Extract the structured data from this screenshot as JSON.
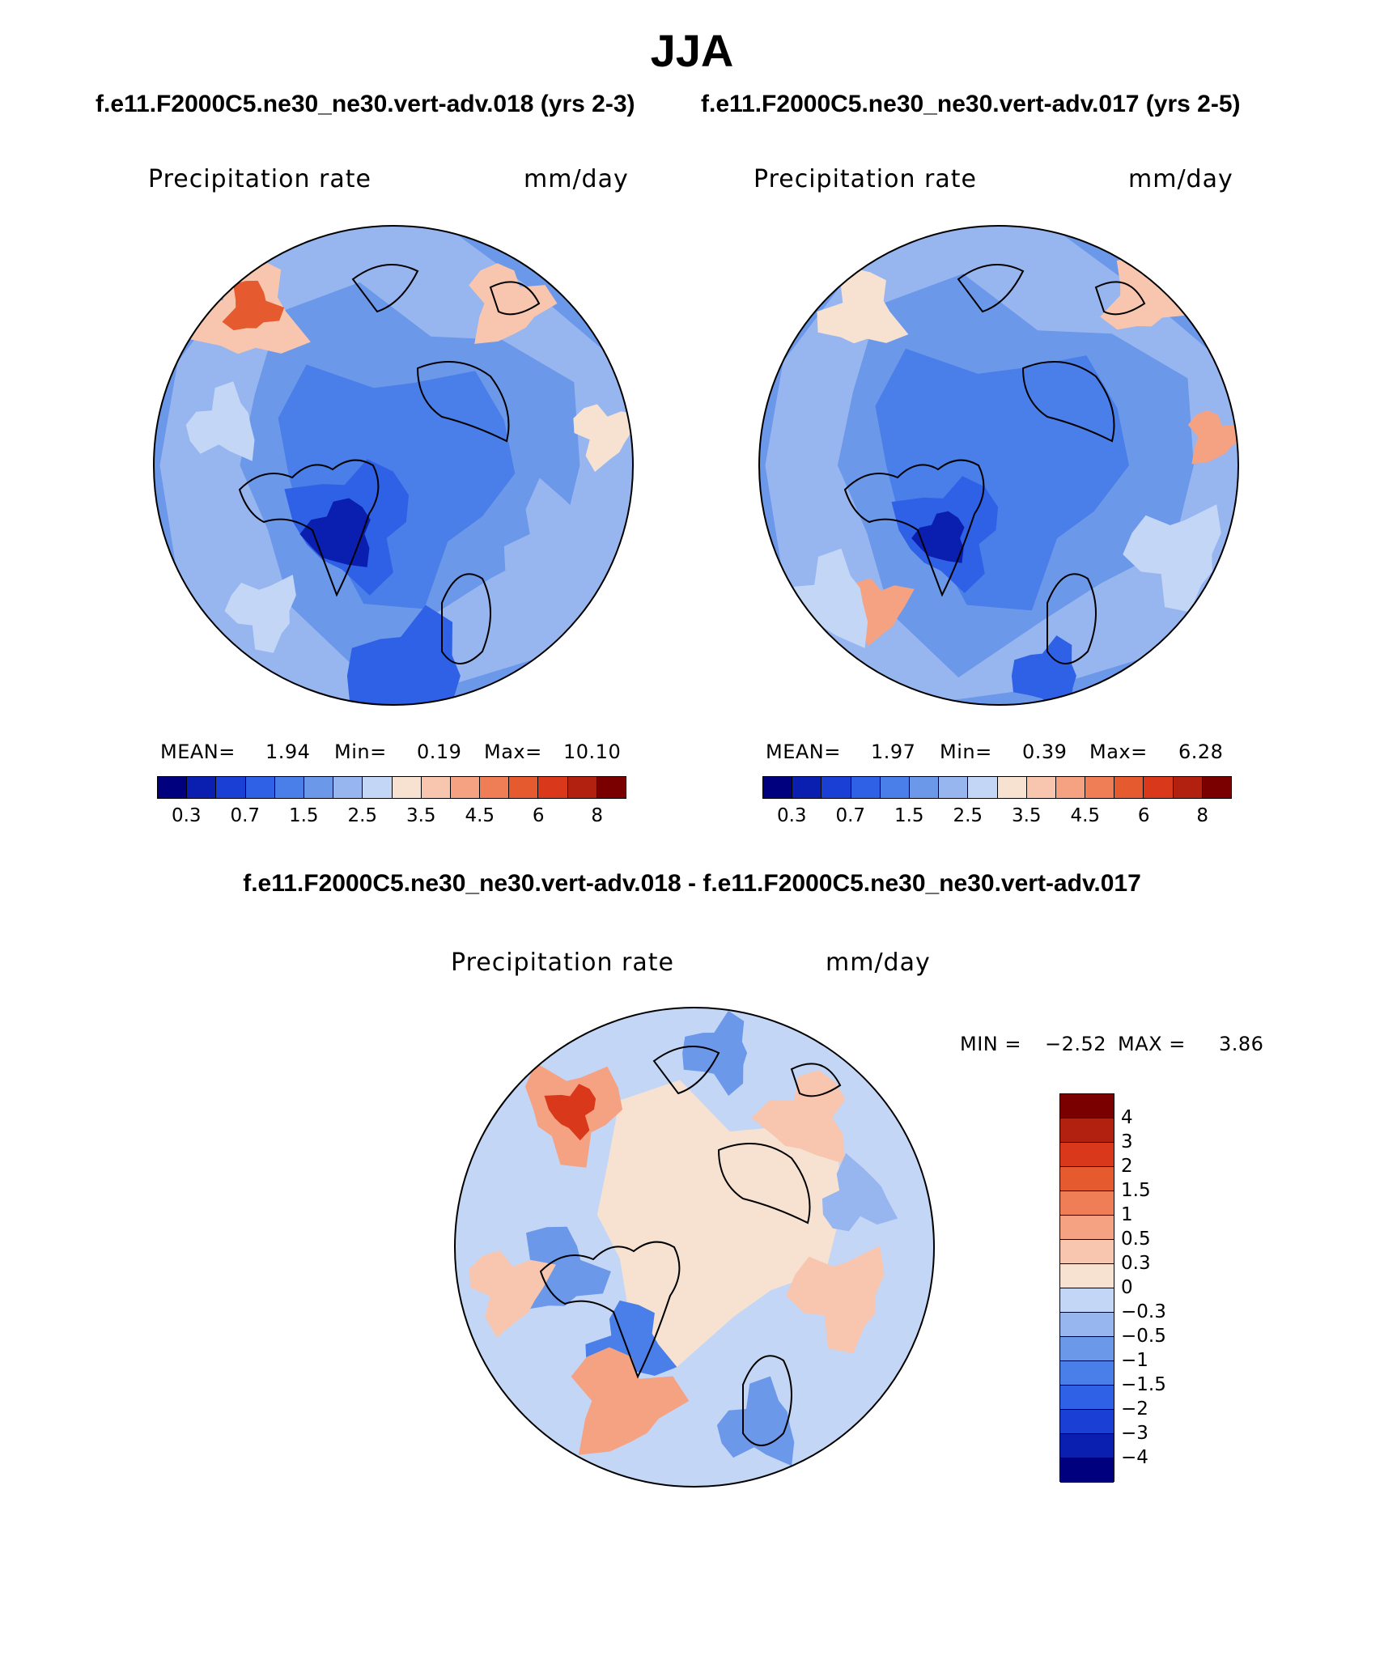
{
  "figure": {
    "title": "JJA",
    "left_case": "f.e11.F2000C5.ne30_ne30.vert-adv.018 (yrs 2-3)",
    "right_case": "f.e11.F2000C5.ne30_ne30.vert-adv.017 (yrs 2-5)",
    "diff_title": "f.e11.F2000C5.ne30_ne30.vert-adv.018 - f.e11.F2000C5.ne30_ne30.vert-adv.017"
  },
  "colors": {
    "abs_scale": [
      "#00007f",
      "#0a1fb0",
      "#1a3fd4",
      "#2f61e6",
      "#4a7ee8",
      "#6c98ea",
      "#97b6f0",
      "#c4d6f5",
      "#f7e2d2",
      "#f8c6ae",
      "#f5a282",
      "#ef7e56",
      "#e65a30",
      "#d9381a",
      "#b22010",
      "#7a0000"
    ],
    "diff_scale": [
      "#7a0000",
      "#b22010",
      "#d9381a",
      "#e65a30",
      "#ef7e56",
      "#f5a282",
      "#f8c6ae",
      "#f7e2d2",
      "#c4d6f5",
      "#97b6f0",
      "#6c98ea",
      "#4a7ee8",
      "#2f61e6",
      "#1a3fd4",
      "#0a1fb0",
      "#00007f"
    ]
  },
  "chart_data": [
    {
      "type": "heatmap",
      "projection": "north polar stereographic",
      "season": "JJA",
      "case": "f.e11.F2000C5.ne30_ne30.vert-adv.018 (yrs 2-3)",
      "variable": "Precipitation rate",
      "units": "mm/day",
      "stats": {
        "mean_label": "MEAN=",
        "mean": "1.94",
        "min_label": "Min=",
        "min": "0.19",
        "max_label": "Max=",
        "max": "10.10"
      },
      "contour_levels": [
        0.2,
        0.3,
        0.5,
        0.7,
        1,
        1.5,
        2,
        2.5,
        3,
        3.5,
        4,
        4.5,
        5,
        6,
        7,
        8
      ],
      "tick_labels": [
        "0.3",
        "0.7",
        "1.5",
        "2.5",
        "3.5",
        "4.5",
        "6",
        "8"
      ]
    },
    {
      "type": "heatmap",
      "projection": "north polar stereographic",
      "season": "JJA",
      "case": "f.e11.F2000C5.ne30_ne30.vert-adv.017 (yrs 2-5)",
      "variable": "Precipitation rate",
      "units": "mm/day",
      "stats": {
        "mean_label": "MEAN=",
        "mean": "1.97",
        "min_label": "Min=",
        "min": "0.39",
        "max_label": "Max=",
        "max": "6.28"
      },
      "contour_levels": [
        0.2,
        0.3,
        0.5,
        0.7,
        1,
        1.5,
        2,
        2.5,
        3,
        3.5,
        4,
        4.5,
        5,
        6,
        7,
        8
      ],
      "tick_labels": [
        "0.3",
        "0.7",
        "1.5",
        "2.5",
        "3.5",
        "4.5",
        "6",
        "8"
      ]
    },
    {
      "type": "heatmap",
      "projection": "north polar stereographic",
      "season": "JJA",
      "case": "f.e11.F2000C5.ne30_ne30.vert-adv.018 - f.e11.F2000C5.ne30_ne30.vert-adv.017",
      "variable": "Precipitation rate",
      "units": "mm/day",
      "stats": {
        "min_label": "MIN =",
        "min": "−2.52",
        "max_label": "MAX =",
        "max": "3.86"
      },
      "tick_labels": [
        "4",
        "3",
        "2",
        "1.5",
        "1",
        "0.5",
        "0.3",
        "0",
        "−0.3",
        "−0.5",
        "−1",
        "−1.5",
        "−2",
        "−3",
        "−4"
      ]
    }
  ]
}
